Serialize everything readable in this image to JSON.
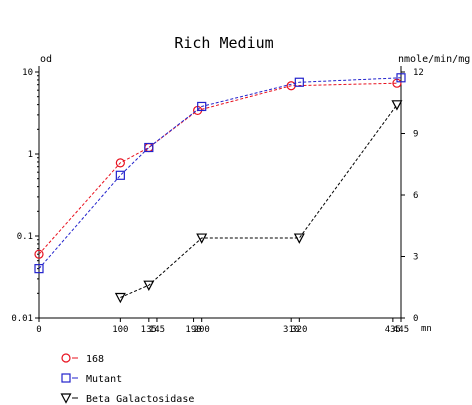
{
  "chart_data": {
    "type": "line",
    "title": "Rich Medium",
    "left_axis_label": "od",
    "right_axis_label": "nmole/min/mg",
    "x_unit_label": "mn",
    "x_ticks": [
      "0",
      "100",
      "135",
      "145",
      "190",
      "200",
      "310",
      "320",
      "435",
      "445"
    ],
    "x_tick_values": [
      0,
      100,
      135,
      145,
      190,
      200,
      310,
      320,
      435,
      445
    ],
    "xlim": [
      0,
      445
    ],
    "left_axis": {
      "scale": "log",
      "ylim": [
        0.01,
        10
      ],
      "ticks": [
        "0.01",
        "0.1",
        "1",
        "10"
      ],
      "tick_values": [
        0.01,
        0.1,
        1,
        10
      ]
    },
    "right_axis": {
      "scale": "linear",
      "ylim": [
        0,
        12
      ],
      "ticks": [
        "0",
        "3",
        "6",
        "9",
        "12"
      ],
      "tick_values": [
        0,
        3,
        6,
        9,
        12
      ]
    },
    "grid": false,
    "legend_position": "bottom-left",
    "series": [
      {
        "name": "168",
        "axis": "left",
        "marker": "circle",
        "color": "#e8101e",
        "x": [
          0,
          100,
          135,
          195,
          310,
          440
        ],
        "y": [
          0.06,
          0.78,
          1.2,
          3.4,
          6.8,
          7.3
        ]
      },
      {
        "name": "Mutant",
        "axis": "left",
        "marker": "square",
        "color": "#2222cc",
        "x": [
          0,
          100,
          135,
          200,
          320,
          445
        ],
        "y": [
          0.04,
          0.55,
          1.2,
          3.8,
          7.5,
          8.5
        ]
      },
      {
        "name": "Beta Galactosidase",
        "axis": "right",
        "marker": "triangle-down",
        "color": "#000000",
        "x": [
          100,
          135,
          200,
          320,
          440
        ],
        "y": [
          1.0,
          1.6,
          3.9,
          3.9,
          10.4
        ]
      }
    ]
  }
}
